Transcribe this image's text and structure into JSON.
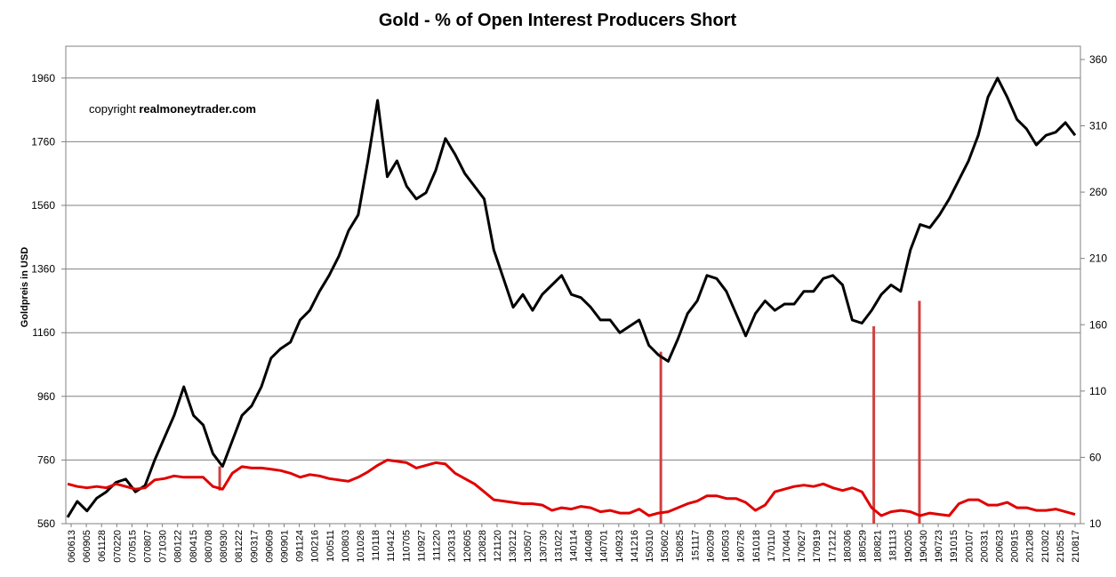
{
  "chart_data": {
    "type": "line",
    "title": "Gold -  % of Open Interest Producers Short",
    "ylabel": "Goldpreis in USD",
    "copyright_prefix": "copyright",
    "copyright_site": "realmoneytrader.com",
    "ylim_left": [
      560,
      2060
    ],
    "ylim_right": [
      10,
      370
    ],
    "yticks_left": [
      560,
      760,
      960,
      1160,
      1360,
      1560,
      1760,
      1960
    ],
    "yticks_right": [
      10,
      60,
      110,
      160,
      210,
      260,
      310,
      360
    ],
    "ytick_labels_left": [
      "560",
      "760",
      "960",
      "1160",
      "1360",
      "1560",
      "1760",
      "1960"
    ],
    "ytick_labels_right": [
      "10",
      "60",
      "110",
      "160",
      "210",
      "260",
      "310",
      "360"
    ],
    "x_labels": [
      "060613",
      "060905",
      "061128",
      "070220",
      "070515",
      "070807",
      "071030",
      "080122",
      "080415",
      "080708",
      "080930",
      "081222",
      "090317",
      "090609",
      "090901",
      "091124",
      "100216",
      "100511",
      "100803",
      "101026",
      "110118",
      "110412",
      "110705",
      "110927",
      "111220",
      "120313",
      "120605",
      "120828",
      "121120",
      "130212",
      "130507",
      "130730",
      "131022",
      "140114",
      "140408",
      "140701",
      "140923",
      "141216",
      "150310",
      "150602",
      "150825",
      "151117",
      "160209",
      "160503",
      "160726",
      "161018",
      "170110",
      "170404",
      "170627",
      "170919",
      "171212",
      "180306",
      "180529",
      "180821",
      "181113",
      "190205",
      "190430",
      "190723",
      "191015",
      "200107",
      "200331",
      "200623",
      "200915",
      "201208",
      "210302",
      "210525",
      "210817"
    ],
    "grid": true,
    "series": [
      {
        "name": "Gold price (USD)",
        "axis": "left",
        "color": "#000000",
        "values": [
          580,
          630,
          600,
          640,
          660,
          690,
          700,
          660,
          680,
          760,
          830,
          900,
          990,
          900,
          870,
          780,
          740,
          820,
          900,
          930,
          990,
          1080,
          1110,
          1130,
          1200,
          1230,
          1290,
          1340,
          1400,
          1480,
          1530,
          1700,
          1890,
          1650,
          1700,
          1620,
          1580,
          1600,
          1670,
          1770,
          1720,
          1660,
          1620,
          1580,
          1420,
          1330,
          1240,
          1280,
          1230,
          1280,
          1310,
          1340,
          1280,
          1270,
          1240,
          1200,
          1200,
          1160,
          1180,
          1200,
          1120,
          1090,
          1070,
          1140,
          1220,
          1260,
          1340,
          1330,
          1290,
          1220,
          1150,
          1220,
          1260,
          1230,
          1250,
          1250,
          1290,
          1290,
          1330,
          1340,
          1310,
          1200,
          1190,
          1230,
          1280,
          1310,
          1290,
          1420,
          1500,
          1490,
          1530,
          1580,
          1640,
          1700,
          1780,
          1900,
          1960,
          1900,
          1830,
          1800,
          1750,
          1780,
          1790,
          1820,
          1780
        ]
      },
      {
        "name": "% of Open Interest Producers Short",
        "axis": "right",
        "color": "#e00000",
        "values": [
          40,
          38,
          37,
          38,
          37,
          40,
          38,
          36,
          37,
          43,
          44,
          46,
          45,
          45,
          45,
          38,
          36,
          48,
          53,
          52,
          52,
          51,
          50,
          48,
          45,
          47,
          46,
          44,
          43,
          42,
          45,
          49,
          54,
          58,
          57,
          56,
          52,
          54,
          56,
          55,
          48,
          44,
          40,
          34,
          28,
          27,
          26,
          25,
          25,
          24,
          20,
          22,
          21,
          23,
          22,
          19,
          20,
          18,
          18,
          21,
          16,
          18,
          19,
          22,
          25,
          27,
          31,
          31,
          29,
          29,
          26,
          20,
          24,
          34,
          36,
          38,
          39,
          38,
          40,
          37,
          35,
          37,
          34,
          22,
          16,
          19,
          20,
          19,
          16,
          18,
          17,
          16,
          25,
          28,
          28,
          24,
          24,
          26,
          22,
          22,
          20,
          20,
          21,
          19,
          17
        ]
      }
    ],
    "vertical_markers": [
      {
        "x_label": "150602",
        "from_right": 10,
        "to_left": 1100
      },
      {
        "x_label": "180821",
        "from_right": 10,
        "to_left": 1180
      },
      {
        "x_label": "190430",
        "from_right": 10,
        "to_left": 1260
      },
      {
        "x_label": "080930",
        "from_right": 35,
        "to_left": 740
      }
    ]
  }
}
